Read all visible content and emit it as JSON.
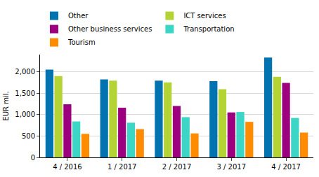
{
  "chart_data": {
    "type": "bar",
    "y_label": "EUR mil.",
    "categories": [
      "4 / 2016",
      "1 / 2017",
      "2 / 2017",
      "3 / 2017",
      "4 / 2017"
    ],
    "series": [
      {
        "name": "Other",
        "color": "#0073b0",
        "values": [
          2050,
          1820,
          1790,
          1780,
          2330
        ]
      },
      {
        "name": "ICT services",
        "color": "#b4d334",
        "values": [
          1900,
          1790,
          1750,
          1590,
          1880
        ]
      },
      {
        "name": "Other business services",
        "color": "#9c007f",
        "values": [
          1240,
          1160,
          1200,
          1050,
          1740
        ]
      },
      {
        "name": "Transportation",
        "color": "#3bd6c6",
        "values": [
          840,
          810,
          940,
          1060,
          920
        ]
      },
      {
        "name": "Tourism",
        "color": "#ff8c00",
        "values": [
          550,
          660,
          560,
          830,
          580
        ]
      }
    ],
    "ylim": [
      0,
      2400
    ],
    "yticks": [
      0,
      500,
      {
        "value": 1000,
        "label": "1,000"
      },
      {
        "value": 1500,
        "label": "1,500"
      },
      {
        "value": 2000,
        "label": "2,000"
      }
    ],
    "grid": true,
    "legend": "top"
  }
}
